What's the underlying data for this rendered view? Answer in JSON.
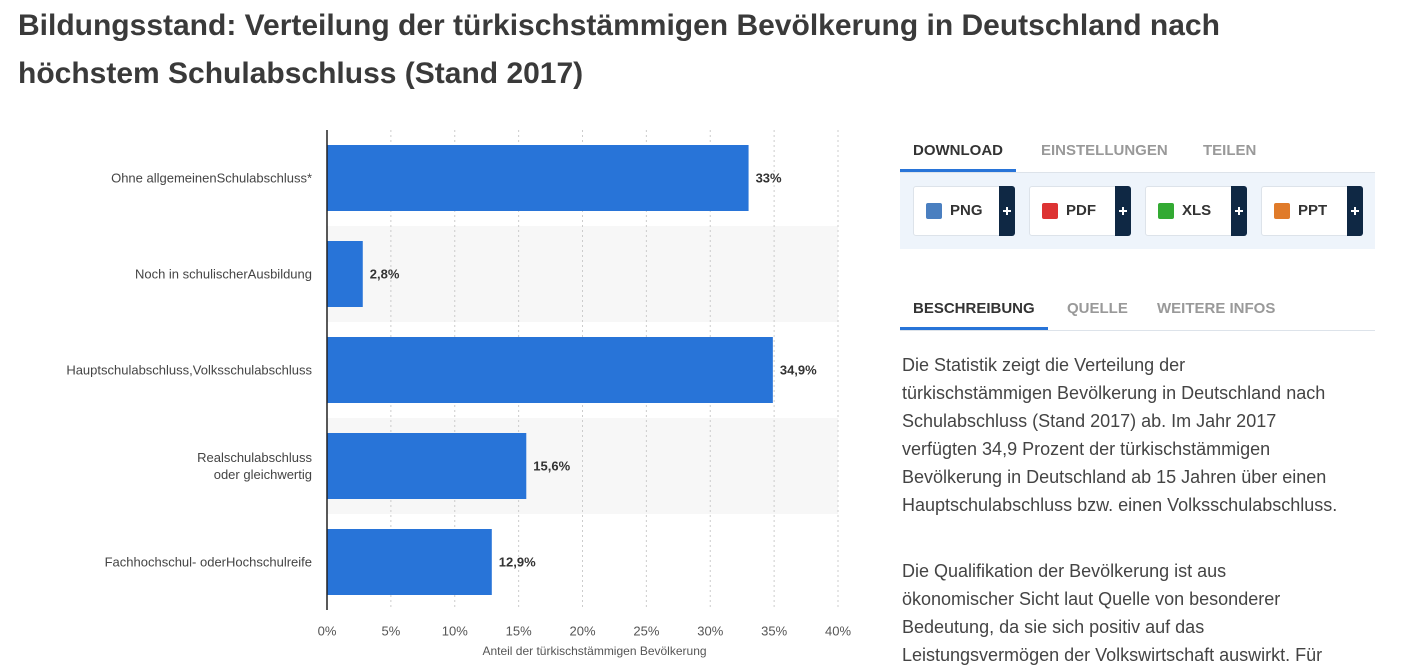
{
  "header": {
    "title": "Bildungsstand: Verteilung der türkischstämmigen Bevölkerung in Deutschland nach höchstem Schulabschluss (Stand 2017)"
  },
  "chart_data": {
    "type": "bar",
    "orientation": "horizontal",
    "categories": [
      "Ohne allgemeinenSchulabschluss*",
      "Noch in schulischerAusbildung",
      "Hauptschulabschluss,Volksschulabschluss",
      "Realschulabschluss\noder gleichwertig",
      "Fachhochschul- oderHochschulreife"
    ],
    "values": [
      33,
      2.8,
      34.9,
      15.6,
      12.9
    ],
    "value_labels": [
      "33%",
      "2,8%",
      "34,9%",
      "15,6%",
      "12,9%"
    ],
    "color": "#2874d8",
    "x_label": "Anteil der türkischstämmigen Bevölkerung",
    "xlim": [
      0,
      40
    ],
    "xticks": [
      {
        "value": 0,
        "label": "0%"
      },
      {
        "value": 5,
        "label": "5%"
      },
      {
        "value": 10,
        "label": "10%"
      },
      {
        "value": 15,
        "label": "15%"
      },
      {
        "value": 20,
        "label": "20%"
      },
      {
        "value": 25,
        "label": "25%"
      },
      {
        "value": 30,
        "label": "30%"
      },
      {
        "value": 35,
        "label": "35%"
      },
      {
        "value": 40,
        "label": "40%"
      }
    ],
    "grid": true
  },
  "download_tabs": [
    "DOWNLOAD",
    "EINSTELLUNGEN",
    "TEILEN"
  ],
  "download_buttons": [
    "PNG",
    "PDF",
    "XLS",
    "PPT"
  ],
  "info_tabs": [
    "BESCHREIBUNG",
    "QUELLE",
    "WEITERE INFOS"
  ],
  "description": [
    [
      "Die Statistik zeigt die Verteilung der",
      "türkischstämmigen Bevölkerung in Deutschland nach",
      "Schulabschluss (Stand 2017) ab. Im Jahr 2017",
      "verfügten 34,9 Prozent der türkischstämmigen",
      "Bevölkerung in Deutschland ab 15 Jahren über einen",
      "Hauptschulabschluss bzw. einen Volksschulabschluss."
    ],
    [
      "Die Qualifikation der Bevölkerung ist aus",
      "ökonomischer Sicht laut Quelle von besonderer",
      "Bedeutung, da sie sich positiv auf das",
      "Leistungsvermögen der Volkswirtschaft auswirkt. Für"
    ]
  ]
}
